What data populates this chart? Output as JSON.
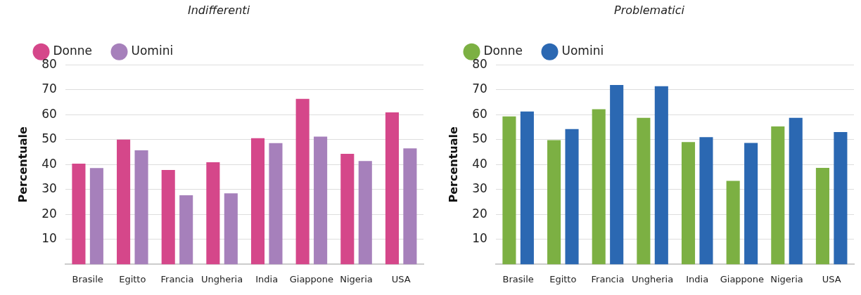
{
  "chart_data": [
    {
      "type": "bar",
      "title": "Indifferenti",
      "ylabel": "Percentuale",
      "categories": [
        "Brasile",
        "Egitto",
        "Francia",
        "Ungheria",
        "India",
        "Giappone",
        "Nigeria",
        "USA"
      ],
      "series": [
        {
          "name": "Donne",
          "color": "#d5478a",
          "values": [
            40.4,
            50.0,
            37.8,
            40.9,
            50.6,
            66.3,
            44.3,
            60.9
          ]
        },
        {
          "name": "Uomini",
          "color": "#a680bb",
          "values": [
            38.6,
            45.7,
            27.7,
            28.5,
            48.6,
            51.2,
            41.4,
            46.5
          ]
        }
      ],
      "ylim": [
        0,
        80
      ],
      "yticks": [
        10,
        20,
        30,
        40,
        50,
        60,
        70,
        80
      ],
      "grid": "y",
      "legend": "top left"
    },
    {
      "type": "bar",
      "title": "Problematici",
      "ylabel": "Percentuale",
      "categories": [
        "Brasile",
        "Egitto",
        "Francia",
        "Ungheria",
        "India",
        "Giappone",
        "Nigeria",
        "USA"
      ],
      "series": [
        {
          "name": "Donne",
          "color": "#7cb043",
          "values": [
            59.3,
            49.8,
            62.2,
            58.7,
            49.0,
            33.5,
            55.3,
            38.7
          ]
        },
        {
          "name": "Uomini",
          "color": "#2b68b2",
          "values": [
            61.3,
            54.2,
            71.9,
            71.4,
            51.0,
            48.7,
            58.7,
            53.0
          ]
        }
      ],
      "ylim": [
        0,
        80
      ],
      "yticks": [
        10,
        20,
        30,
        40,
        50,
        60,
        70,
        80
      ],
      "grid": "y",
      "legend": "top left"
    }
  ]
}
